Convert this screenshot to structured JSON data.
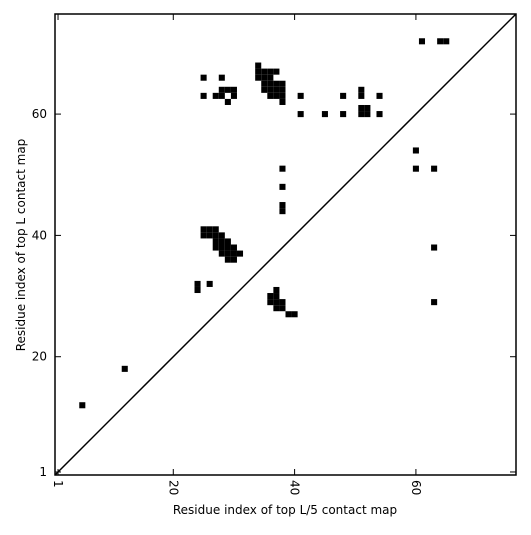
{
  "chart_data": {
    "type": "scatter",
    "marker": "square",
    "xlabel": "Residue index of top L/5 contact map",
    "ylabel": "Residue index of top L contact map",
    "xlim": [
      0.5,
      76.5
    ],
    "ylim": [
      0.5,
      76.5
    ],
    "xticks": [
      1,
      20,
      40,
      60
    ],
    "yticks": [
      1,
      20,
      40,
      60
    ],
    "diagonal": true,
    "color": "#000000",
    "x": [
      5,
      12,
      24,
      24,
      26,
      25,
      26,
      27,
      25,
      26,
      27,
      28,
      27,
      28,
      29,
      27,
      28,
      29,
      30,
      28,
      29,
      30,
      31,
      29,
      30,
      37,
      36,
      37,
      36,
      37,
      38,
      37,
      38,
      39,
      40,
      38,
      38,
      38,
      38,
      25,
      28,
      25,
      27,
      28,
      28,
      29,
      30,
      30,
      29,
      34,
      34,
      35,
      36,
      37,
      34,
      35,
      36,
      35,
      36,
      37,
      38,
      35,
      36,
      37,
      38,
      36,
      37,
      38,
      38,
      41,
      41,
      45,
      48,
      48,
      51,
      51,
      51,
      52,
      51,
      52,
      54,
      54,
      60,
      60,
      63,
      63,
      63,
      61,
      64,
      65
    ],
    "y": [
      12,
      18,
      32,
      31,
      32,
      41,
      41,
      41,
      40,
      40,
      40,
      40,
      39,
      39,
      39,
      38,
      38,
      38,
      38,
      37,
      37,
      37,
      37,
      36,
      36,
      31,
      30,
      30,
      29,
      29,
      29,
      28,
      28,
      27,
      27,
      51,
      48,
      45,
      44,
      66,
      66,
      63,
      63,
      63,
      64,
      64,
      64,
      63,
      62,
      68,
      67,
      67,
      67,
      67,
      66,
      66,
      66,
      65,
      65,
      65,
      65,
      64,
      64,
      64,
      64,
      63,
      63,
      63,
      62,
      63,
      60,
      60,
      63,
      60,
      64,
      63,
      61,
      61,
      60,
      60,
      63,
      60,
      54,
      51,
      51,
      38,
      29,
      72,
      72,
      72
    ]
  }
}
